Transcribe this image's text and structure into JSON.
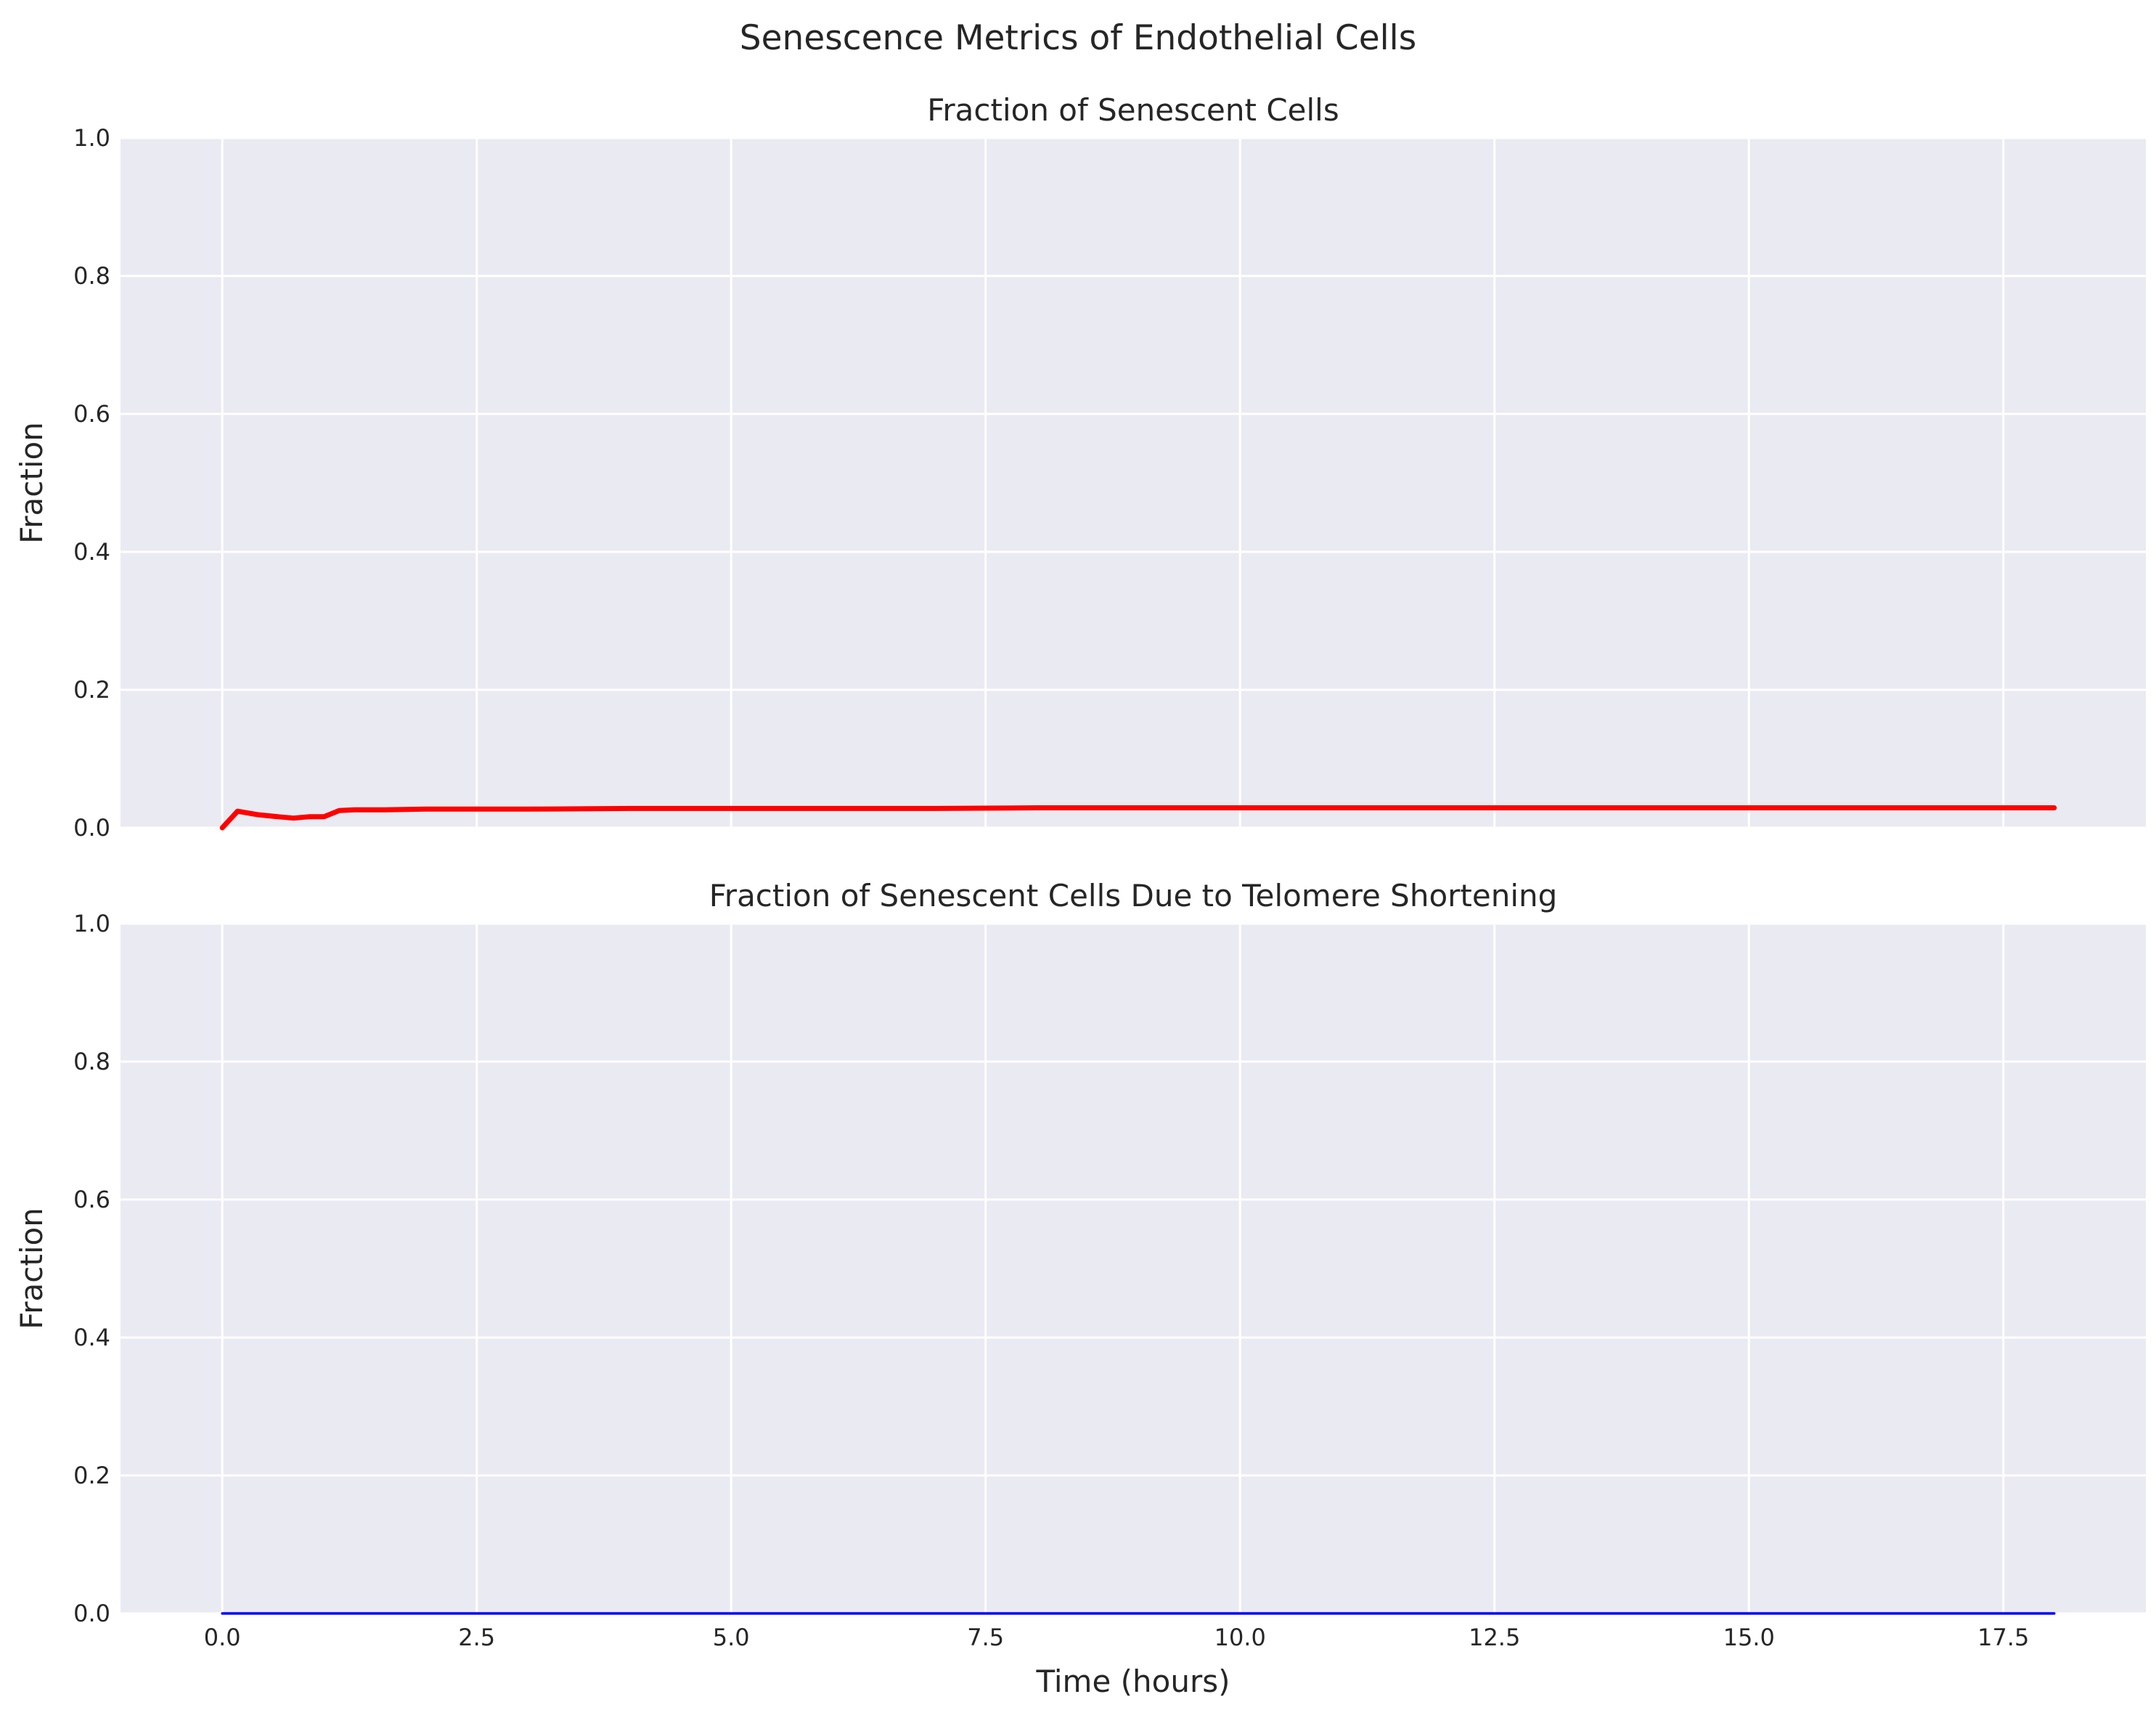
{
  "figure": {
    "suptitle": "Senescence Metrics of Endothelial Cells"
  },
  "chart_data": [
    {
      "type": "line",
      "title": "Fraction of Senescent Cells",
      "xlabel": "",
      "ylabel": "Fraction",
      "xlim": [
        -1.0,
        18.9
      ],
      "ylim": [
        0.0,
        1.0
      ],
      "xticks": [
        0.0,
        2.5,
        5.0,
        7.5,
        10.0,
        12.5,
        15.0,
        17.5
      ],
      "yticks": [
        0.0,
        0.2,
        0.4,
        0.6,
        0.8,
        1.0
      ],
      "show_xtick_labels": false,
      "grid": true,
      "series": [
        {
          "color": "#ff0000",
          "x": [
            0.0,
            0.15,
            0.35,
            0.55,
            0.7,
            0.85,
            1.0,
            1.15,
            1.3,
            1.6,
            2.0,
            2.5,
            3.0,
            4.0,
            5.0,
            6.0,
            7.0,
            8.0,
            10.0,
            12.0,
            14.0,
            16.0,
            18.0
          ],
          "y": [
            0.0,
            0.024,
            0.019,
            0.016,
            0.014,
            0.016,
            0.016,
            0.025,
            0.026,
            0.026,
            0.027,
            0.027,
            0.027,
            0.028,
            0.028,
            0.028,
            0.028,
            0.029,
            0.029,
            0.029,
            0.029,
            0.029,
            0.029
          ]
        }
      ]
    },
    {
      "type": "line",
      "title": "Fraction of Senescent Cells Due to Telomere Shortening",
      "xlabel": "Time (hours)",
      "ylabel": "Fraction",
      "xlim": [
        -1.0,
        18.9
      ],
      "ylim": [
        0.0,
        1.0
      ],
      "xticks": [
        0.0,
        2.5,
        5.0,
        7.5,
        10.0,
        12.5,
        15.0,
        17.5
      ],
      "yticks": [
        0.0,
        0.2,
        0.4,
        0.6,
        0.8,
        1.0
      ],
      "show_xtick_labels": true,
      "grid": true,
      "series": [
        {
          "color": "#0000ff",
          "x": [
            0.0,
            18.0
          ],
          "y": [
            0.0,
            0.0
          ]
        }
      ]
    }
  ]
}
